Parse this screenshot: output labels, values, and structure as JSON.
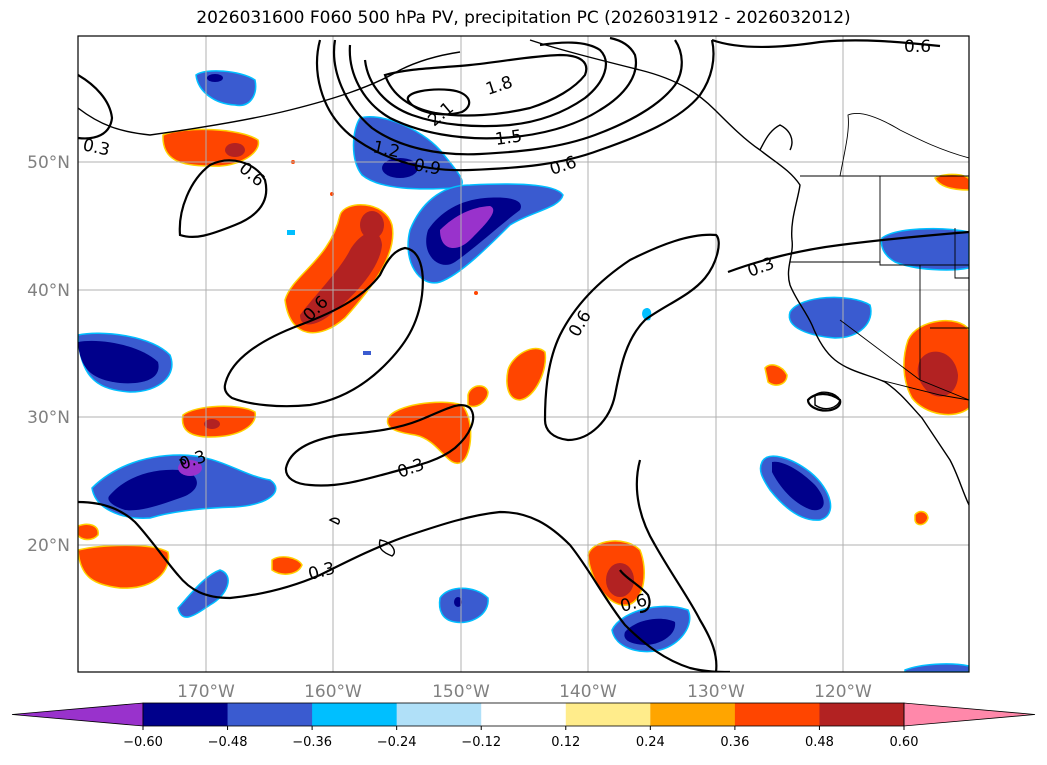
{
  "title": "2026031600 F060 500 hPa PV, precipitation PC (2026031912 - 2026032012)",
  "lat_labels": [
    "50°N",
    "40°N",
    "30°N",
    "20°N"
  ],
  "lon_labels": [
    "170°W",
    "160°W",
    "150°W",
    "140°W",
    "130°W",
    "120°W"
  ],
  "contour_labels": {
    "c21": "2.1",
    "c18": "1.8",
    "c15": "1.5",
    "c12": "1.2",
    "c09": "0.9",
    "c06a": "0.6",
    "c06b": "0.6",
    "c06c": "0.6",
    "c06d": "0.6",
    "c06e": "0.6",
    "c06f": "0.6",
    "c03a": "0.3",
    "c03b": "0.3",
    "c03c": "0.3",
    "c03d": "0.3",
    "c03e": "0.3"
  },
  "colorbar": {
    "colors": [
      "#9932cc",
      "#00008b",
      "#3a5bd0",
      "#00bfff",
      "#b0e0f8",
      "#ffffff",
      "#ffec8b",
      "#ffa500",
      "#ff4500",
      "#b22222",
      "#ff88aa"
    ],
    "tick_labels": [
      "−0.60",
      "−0.48",
      "−0.36",
      "−0.24",
      "−0.12",
      "0.12",
      "0.24",
      "0.36",
      "0.48",
      "0.60"
    ]
  }
}
